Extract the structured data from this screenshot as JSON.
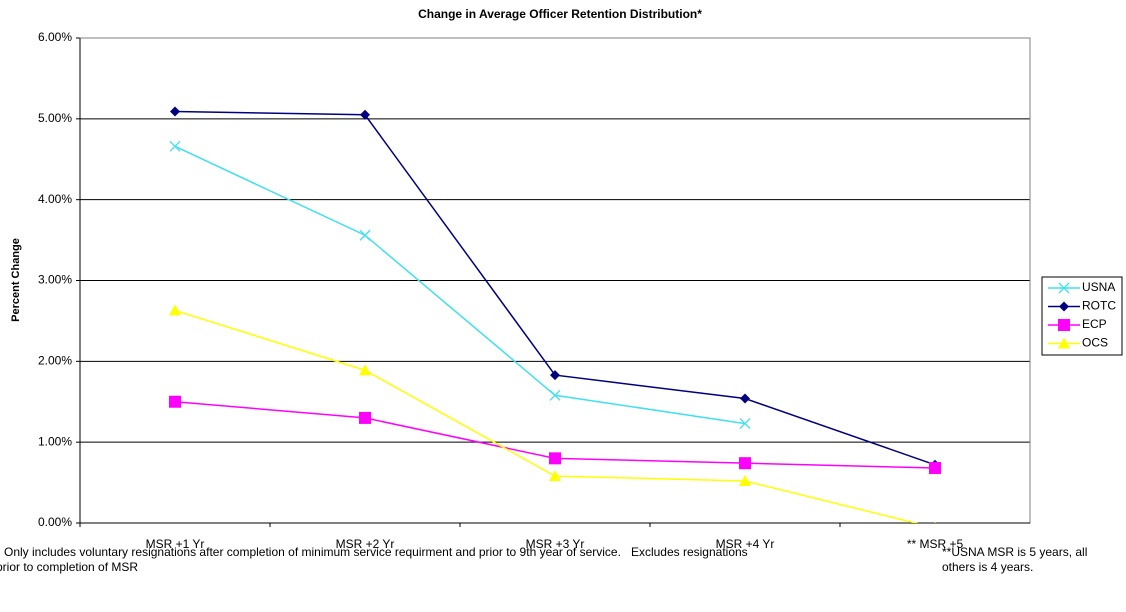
{
  "chart_data": {
    "type": "line",
    "title": "Change in Average Officer Retention Distribution*",
    "y_label": "Percent Change",
    "categories": [
      "MSR +1 Yr",
      "MSR +2 Yr",
      "MSR +3 Yr",
      "MSR +4 Yr",
      "** MSR +5"
    ],
    "series": [
      {
        "name": "USNA",
        "color": "#40e0f0",
        "marker": "x",
        "values": [
          4.66,
          3.56,
          1.58,
          1.23,
          null
        ]
      },
      {
        "name": "ROTC",
        "color": "#000080",
        "marker": "diamond",
        "values": [
          5.09,
          5.05,
          1.83,
          1.54,
          0.72
        ]
      },
      {
        "name": "ECP",
        "color": "#ff00ff",
        "marker": "square",
        "values": [
          1.5,
          1.3,
          0.8,
          0.74,
          0.68
        ]
      },
      {
        "name": "OCS",
        "color": "#ffff00",
        "marker": "triangle",
        "values": [
          2.63,
          1.89,
          0.58,
          0.52,
          -0.06
        ]
      }
    ],
    "ylim": [
      0,
      6
    ],
    "yticks": [
      {
        "value": 0,
        "label": "0.00%"
      },
      {
        "value": 1,
        "label": "1.00%"
      },
      {
        "value": 2,
        "label": "2.00%"
      },
      {
        "value": 3,
        "label": "3.00%"
      },
      {
        "value": 4,
        "label": "4.00%"
      },
      {
        "value": 5,
        "label": "5.00%"
      },
      {
        "value": 6,
        "label": "6.00%"
      }
    ],
    "grid": true,
    "legend": "right",
    "notes": [
      "Only includes voluntary resignations after completion of minimum service requirment and prior to 9th year of service.   Excludes resignations",
      "prior to completion of MSR"
    ],
    "side_notes": [
      "**USNA MSR is 5 years, all",
      "others is 4 years."
    ]
  }
}
